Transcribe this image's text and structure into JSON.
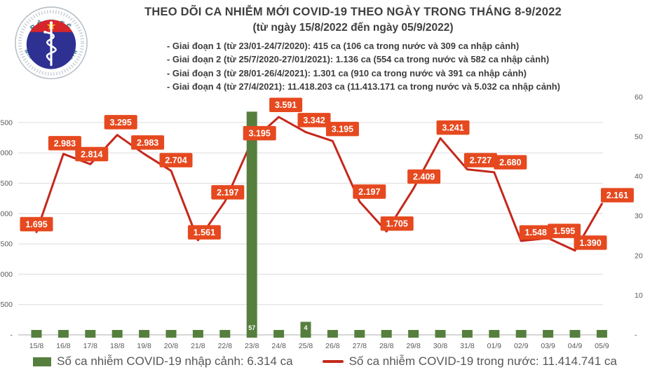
{
  "logo": {
    "top_text": "BỘ Y TẾ",
    "bottom_text": "MINISTRY OF HEALTH"
  },
  "header": {
    "title": "THEO DÕI CA NHIỄM MỚI COVID-19 THEO NGÀY TRONG THÁNG 8-9/2022",
    "subtitle": "(từ ngày 15/8/2022 đến ngày 05/9/2022)",
    "phases": [
      "- Giai đoạn 1 (từ 23/01-24/7/2020): 415 ca (106 ca trong nước và 309 ca nhập cảnh)",
      "- Giai đoạn 2 (từ 25/7/2020-27/01/2021): 1.136 ca (554 ca trong nước và 582 ca nhập cảnh)",
      "- Giai đoạn 3 (từ 28/01-26/4/2021): 1.301 ca (910 ca trong nước và 391 ca nhập cảnh)",
      "- Giai đoạn 4 (từ 27/4/2021): 11.418.203 ca (11.413.171 ca trong nước và 5.032 ca nhập cảnh)"
    ]
  },
  "chart_data": {
    "type": "line",
    "title": "THEO DÕI CA NHIỄM MỚI COVID-19 THEO NGÀY TRONG THÁNG 8-9/2022",
    "subtitle": "(từ ngày 15/8/2022 đến ngày 05/9/2022)",
    "categories": [
      "15/8",
      "16/8",
      "17/8",
      "18/8",
      "19/8",
      "20/8",
      "21/8",
      "22/8",
      "23/8",
      "24/8",
      "25/8",
      "26/8",
      "27/8",
      "28/8",
      "29/8",
      "30/8",
      "31/8",
      "01/9",
      "02/9",
      "03/9",
      "04/9",
      "05/9"
    ],
    "series": [
      {
        "name": "Số ca nhiễm COVID-19 trong nước",
        "type": "line",
        "axis": "left",
        "values": [
          1695,
          2983,
          2814,
          3295,
          2983,
          2704,
          1561,
          2197,
          3195,
          3591,
          3342,
          3195,
          2197,
          1705,
          2409,
          3241,
          2727,
          2680,
          1548,
          1595,
          1390,
          2161
        ]
      },
      {
        "name": "Số ca nhiễm COVID-19 nhập cảnh",
        "type": "bar",
        "axis": "right",
        "values": [
          null,
          null,
          null,
          null,
          null,
          null,
          null,
          null,
          57,
          null,
          4,
          null,
          null,
          null,
          null,
          null,
          null,
          null,
          null,
          1,
          1,
          null
        ]
      }
    ],
    "left_axis": {
      "tick_labels_visible": [
        ".500",
        ".000",
        ".500",
        ".000",
        ".500",
        ".000",
        "500",
        "-"
      ],
      "tick_values": [
        3500,
        3000,
        2500,
        2000,
        1500,
        1000,
        500,
        0
      ],
      "range": [
        0,
        3700
      ]
    },
    "right_axis": {
      "tick_labels": [
        "60",
        "50",
        "40",
        "30",
        "20",
        "10",
        "-"
      ],
      "tick_values": [
        60,
        50,
        40,
        30,
        20,
        10,
        0
      ],
      "range": [
        0,
        60
      ]
    },
    "grid": "horizontal",
    "legend_position": "bottom"
  },
  "legend": {
    "imported": "Số ca nhiễm COVID-19 nhập cảnh: 6.314 ca",
    "domestic": "Số ca nhiễm COVID-19 trong nước: 11.414.741 ca"
  },
  "colors": {
    "line": "#c5281c",
    "label_box": "#e6491f",
    "label_text": "#ffffff",
    "bar": "#567f3e",
    "bar_label_text": "#ffffff",
    "grid": "#dcdcdc",
    "axis_line": "#c9c9c9",
    "axis_text": "#595959",
    "title_text": "#3f3f3f",
    "legend_text": "#575757",
    "logo_blue": "#2e3192",
    "logo_red": "#d6252b",
    "logo_star": "#f9c51a",
    "logo_teal": "#2c7187"
  }
}
